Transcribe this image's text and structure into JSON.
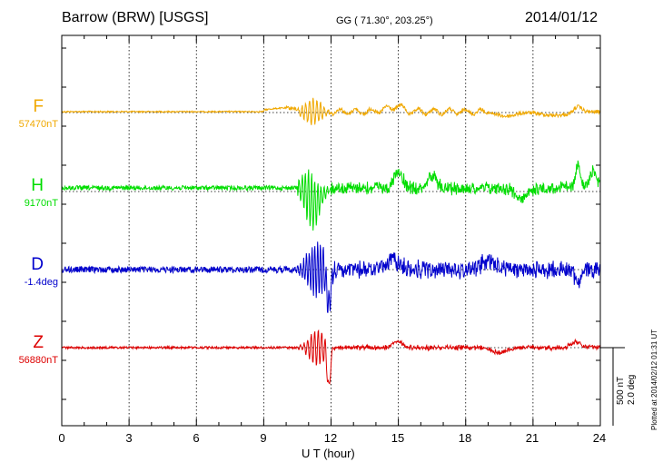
{
  "header": {
    "station": "Barrow (BRW)  [USGS]",
    "coords": "GG ( 71.30°, 203.25°)",
    "date": "2014/01/12"
  },
  "footer": {
    "plotted": "Plotted at 2014/02/12 01:31  UT"
  },
  "scale": {
    "nt": "500 nT",
    "deg": "2.0 deg"
  },
  "chart_data": {
    "type": "line",
    "xlabel": "U T (hour)",
    "xlim": [
      0,
      24
    ],
    "xticks": [
      "0",
      "3",
      "6",
      "9",
      "12",
      "15",
      "18",
      "21",
      "24"
    ],
    "series": [
      {
        "name": "F",
        "baseline": "57470nT",
        "color": "#f0a800",
        "offset": 0
      },
      {
        "name": "H",
        "baseline": "9170nT",
        "color": "#00dd00",
        "offset": 1
      },
      {
        "name": "D",
        "baseline": "-1.4deg",
        "color": "#0000cc",
        "offset": 2
      },
      {
        "name": "Z",
        "baseline": "56880nT",
        "color": "#dd0000",
        "offset": 3
      }
    ]
  }
}
